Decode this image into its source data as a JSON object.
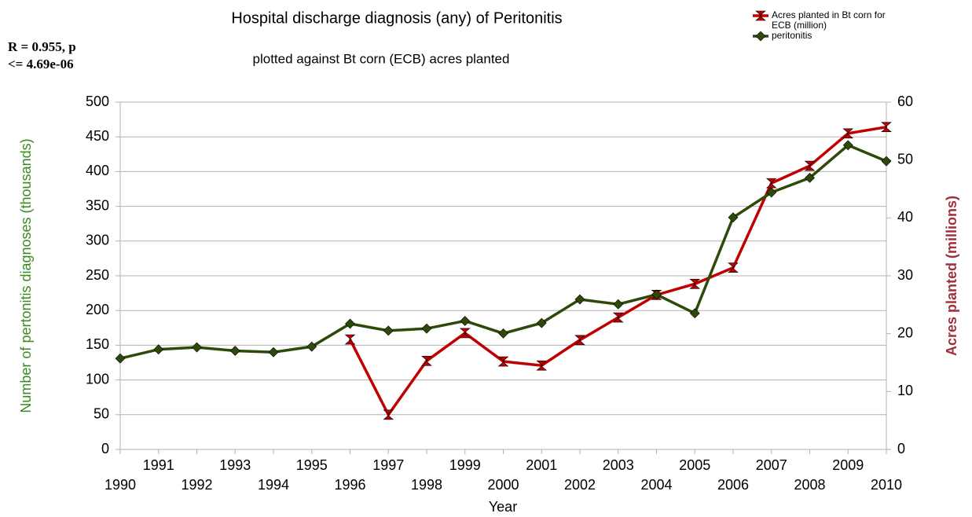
{
  "chart_data": {
    "type": "line",
    "title": "Hospital discharge diagnosis (any) of Peritonitis",
    "subtitle": "plotted against Bt corn (ECB) acres planted",
    "annotation": [
      "R = 0.955, p",
      "<= 4.69e-06"
    ],
    "x_label": "Year",
    "y_label": "Number of pertonitis diagnoses (thousands)",
    "y2_label": "Acres planted (millions)",
    "x": [
      1990,
      1991,
      1992,
      1993,
      1994,
      1995,
      1996,
      1997,
      1998,
      1999,
      2000,
      2001,
      2002,
      2003,
      2004,
      2005,
      2006,
      2007,
      2008,
      2009,
      2010
    ],
    "xlim": [
      1990,
      2010
    ],
    "xticks": [
      1990,
      1991,
      1992,
      1993,
      1994,
      1995,
      1996,
      1997,
      1998,
      1999,
      2000,
      2001,
      2002,
      2003,
      2004,
      2005,
      2006,
      2007,
      2008,
      2009,
      2010
    ],
    "ylim": [
      0,
      500
    ],
    "yticks": [
      0,
      50,
      100,
      150,
      200,
      250,
      300,
      350,
      400,
      450,
      500
    ],
    "y2lim": [
      0,
      60
    ],
    "y2ticks": [
      0,
      10,
      20,
      30,
      40,
      50,
      60
    ],
    "grid": true,
    "legend": "top-right",
    "series": [
      {
        "name": "Acres planted in Bt corn for ECB (million)",
        "color": "#c00000",
        "axis": "y2",
        "marker": "hourglass",
        "values": [
          null,
          null,
          null,
          null,
          null,
          null,
          19,
          6,
          15.3,
          20.1,
          15.2,
          14.5,
          18.9,
          22.8,
          26.7,
          28.6,
          31.4,
          46,
          49,
          54.6,
          55.7
        ]
      },
      {
        "name": "peritonitis",
        "color": "#2e4a0a",
        "axis": "y",
        "marker": "diamond",
        "values": [
          131,
          144,
          147,
          142,
          140,
          148,
          181,
          171,
          174,
          185,
          167,
          182,
          216,
          209,
          223,
          196,
          334,
          370,
          391,
          438,
          415
        ]
      }
    ]
  }
}
